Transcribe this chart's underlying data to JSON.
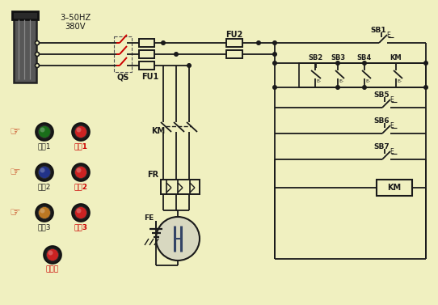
{
  "bg_color": "#f0f0c0",
  "line_color": "#1a1a1a",
  "red_color": "#cc0000",
  "power_label1": "3–50HZ",
  "power_label2": "380V",
  "FU2": "FU2",
  "FU1": "FU1",
  "QS": "QS",
  "KM": "KM",
  "FR": "FR",
  "FE": "FE",
  "SB1": "SB1",
  "SB2": "SB2",
  "SB3": "SB3",
  "SB4": "SB4",
  "SB5": "SB5",
  "SB6": "SB6",
  "SB7": "SB7",
  "btn_labels": [
    [
      "启动1",
      "停止1"
    ],
    [
      "启动2",
      "停止2"
    ],
    [
      "启动3",
      "停止3"
    ],
    [
      "总停止"
    ]
  ],
  "btn_start_colors": [
    "#1a6e1a",
    "#223388",
    "#bb7722"
  ],
  "btn_stop_color": "#cc2222",
  "btn_total_stop_color": "#cc2222"
}
